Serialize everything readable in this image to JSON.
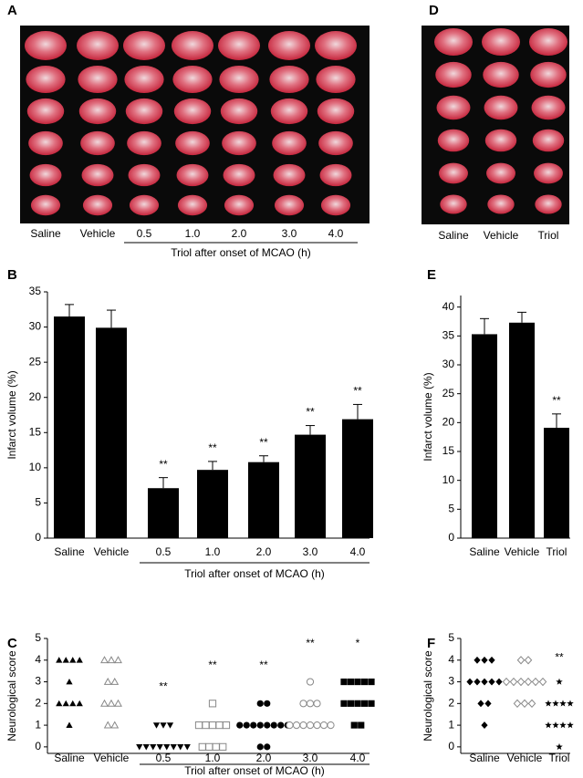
{
  "images": [
    {
      "label": "A",
      "columns": [
        "Saline",
        "Vehicle",
        "0.5",
        "1.0",
        "2.0",
        "3.0",
        "4.0"
      ],
      "group_label": "Triol after onset of MCAO (h)"
    },
    {
      "label": "D",
      "columns": [
        "Saline",
        "Vehicle",
        "Triol"
      ]
    }
  ],
  "chart_data": [
    {
      "type": "bar",
      "panel_label": "B",
      "ylabel": "Infarct volume (%)",
      "categories": [
        "Saline",
        "Vehicle",
        "0.5",
        "1.0",
        "2.0",
        "3.0",
        "4.0"
      ],
      "values": [
        31.5,
        29.9,
        7.1,
        9.7,
        10.8,
        14.7,
        16.9
      ],
      "errors": [
        1.7,
        2.5,
        1.5,
        1.2,
        0.9,
        1.3,
        2.1
      ],
      "annotations": [
        null,
        null,
        "**",
        "**",
        "**",
        "**",
        "**"
      ],
      "group_label": "Triol after onset of MCAO (h)",
      "color": "#000000",
      "ylim": [
        0,
        35
      ],
      "yticks": [
        0,
        5,
        10,
        15,
        20,
        25,
        30,
        35
      ]
    },
    {
      "type": "bar",
      "panel_label": "E",
      "ylabel": "Infarct volume (%)",
      "categories": [
        "Saline",
        "Vehicle",
        "Triol"
      ],
      "values": [
        35.3,
        37.3,
        19.1
      ],
      "errors": [
        2.7,
        1.8,
        2.4
      ],
      "annotations": [
        null,
        null,
        "**"
      ],
      "color": "#000000",
      "ylim": [
        0,
        42
      ],
      "yticks": [
        0,
        5,
        10,
        15,
        20,
        25,
        30,
        35,
        40
      ]
    },
    {
      "type": "dot",
      "panel_label": "C",
      "ylabel": "Neurological score",
      "categories": [
        "Saline",
        "Vehicle",
        "0.5",
        "1.0",
        "2.0",
        "3.0",
        "4.0"
      ],
      "values": [
        [
          4,
          4,
          4,
          4,
          3,
          2,
          2,
          2,
          2,
          1
        ],
        [
          4,
          4,
          4,
          3,
          3,
          2,
          2,
          2,
          1,
          1
        ],
        [
          1,
          1,
          1,
          0,
          0,
          0,
          0,
          0,
          0,
          0,
          0
        ],
        [
          2,
          1,
          1,
          1,
          1,
          1,
          0,
          0,
          0,
          0
        ],
        [
          2,
          2,
          1,
          1,
          1,
          1,
          1,
          1,
          1,
          1,
          0,
          0
        ],
        [
          3,
          2,
          2,
          2,
          1,
          1,
          1,
          1,
          1,
          1,
          1
        ],
        [
          3,
          3,
          3,
          3,
          3,
          2,
          2,
          2,
          2,
          2,
          1,
          1
        ]
      ],
      "markers": [
        "triangle",
        "triangle",
        "triangle-down",
        "square",
        "circle",
        "circle",
        "square"
      ],
      "filled": [
        true,
        false,
        true,
        false,
        true,
        false,
        true
      ],
      "colors": [
        "#000000",
        "#888888",
        "#000000",
        "#888888",
        "#000000",
        "#888888",
        "#000000"
      ],
      "annotations": [
        null,
        null,
        "**",
        "**",
        "**",
        "**",
        "*"
      ],
      "group_label": "Triol after onset of MCAO (h)",
      "ylim": [
        -0.3,
        5
      ],
      "yticks": [
        0,
        1,
        2,
        3,
        4,
        5
      ]
    },
    {
      "type": "dot",
      "panel_label": "F",
      "ylabel": "Neurological score",
      "categories": [
        "Saline",
        "Vehicle",
        "Triol"
      ],
      "values": [
        [
          4,
          4,
          4,
          3,
          3,
          3,
          3,
          3,
          2,
          2,
          1
        ],
        [
          4,
          4,
          3,
          3,
          3,
          3,
          3,
          3,
          2,
          2,
          2
        ],
        [
          3,
          2,
          2,
          2,
          2,
          1,
          1,
          1,
          1,
          0
        ]
      ],
      "markers": [
        "diamond",
        "diamond",
        "star"
      ],
      "filled": [
        true,
        false,
        true
      ],
      "colors": [
        "#000000",
        "#888888",
        "#000000"
      ],
      "annotations": [
        null,
        null,
        "**"
      ],
      "ylim": [
        -0.3,
        5
      ],
      "yticks": [
        0,
        1,
        2,
        3,
        4,
        5
      ]
    }
  ]
}
